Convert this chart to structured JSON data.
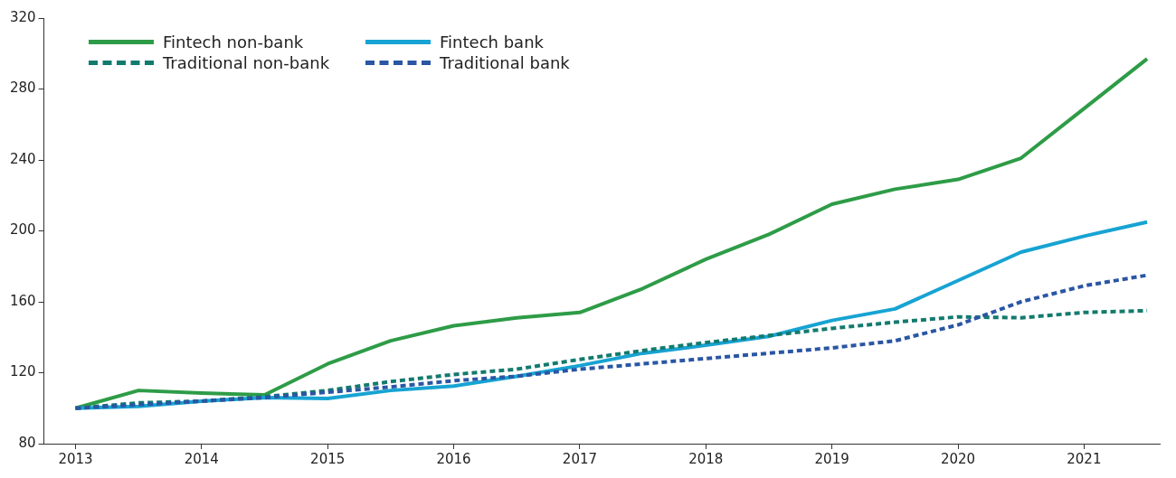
{
  "chart_data": {
    "type": "line",
    "x": [
      2013,
      2013.5,
      2014,
      2014.5,
      2015,
      2015.5,
      2016,
      2016.5,
      2017,
      2017.5,
      2018,
      2018.5,
      2019,
      2019.5,
      2020,
      2020.5,
      2021,
      2021.5
    ],
    "series": [
      {
        "name": "Fintech non-bank",
        "color": "#2e9c47",
        "line_style": "solid",
        "values": [
          100,
          110,
          108.5,
          107.5,
          125,
          138,
          146.5,
          151,
          154,
          167.5,
          184,
          198,
          215,
          223.5,
          229,
          241,
          269,
          297
        ]
      },
      {
        "name": "Fintech bank",
        "color": "#17a3d3",
        "line_style": "solid",
        "values": [
          100,
          101,
          104,
          106,
          105.5,
          110,
          112.5,
          118,
          124,
          131,
          135.5,
          140.5,
          149.5,
          156,
          172,
          188,
          197,
          205
        ]
      },
      {
        "name": "Traditional non-bank",
        "color": "#137a6e",
        "line_style": "dashed",
        "values": [
          100,
          103,
          104,
          106.5,
          110,
          115,
          119,
          122,
          127.5,
          132.5,
          137,
          141,
          145,
          148.5,
          151.5,
          151,
          154,
          155
        ]
      },
      {
        "name": "Traditional bank",
        "color": "#2a56a4",
        "line_style": "dashed",
        "values": [
          100,
          102,
          104,
          106,
          109,
          112,
          115.5,
          118,
          122,
          125,
          128,
          131,
          134,
          138,
          147,
          160,
          169,
          175
        ]
      }
    ],
    "xlim": [
      2012.75,
      2021.6
    ],
    "xticks": [
      2013,
      2014,
      2015,
      2016,
      2017,
      2018,
      2019,
      2020,
      2021
    ],
    "ylim": [
      80,
      320
    ],
    "yticks": [
      80,
      120,
      160,
      200,
      240,
      280,
      320
    ],
    "grid": false,
    "legend": "top left",
    "marker": "none"
  }
}
